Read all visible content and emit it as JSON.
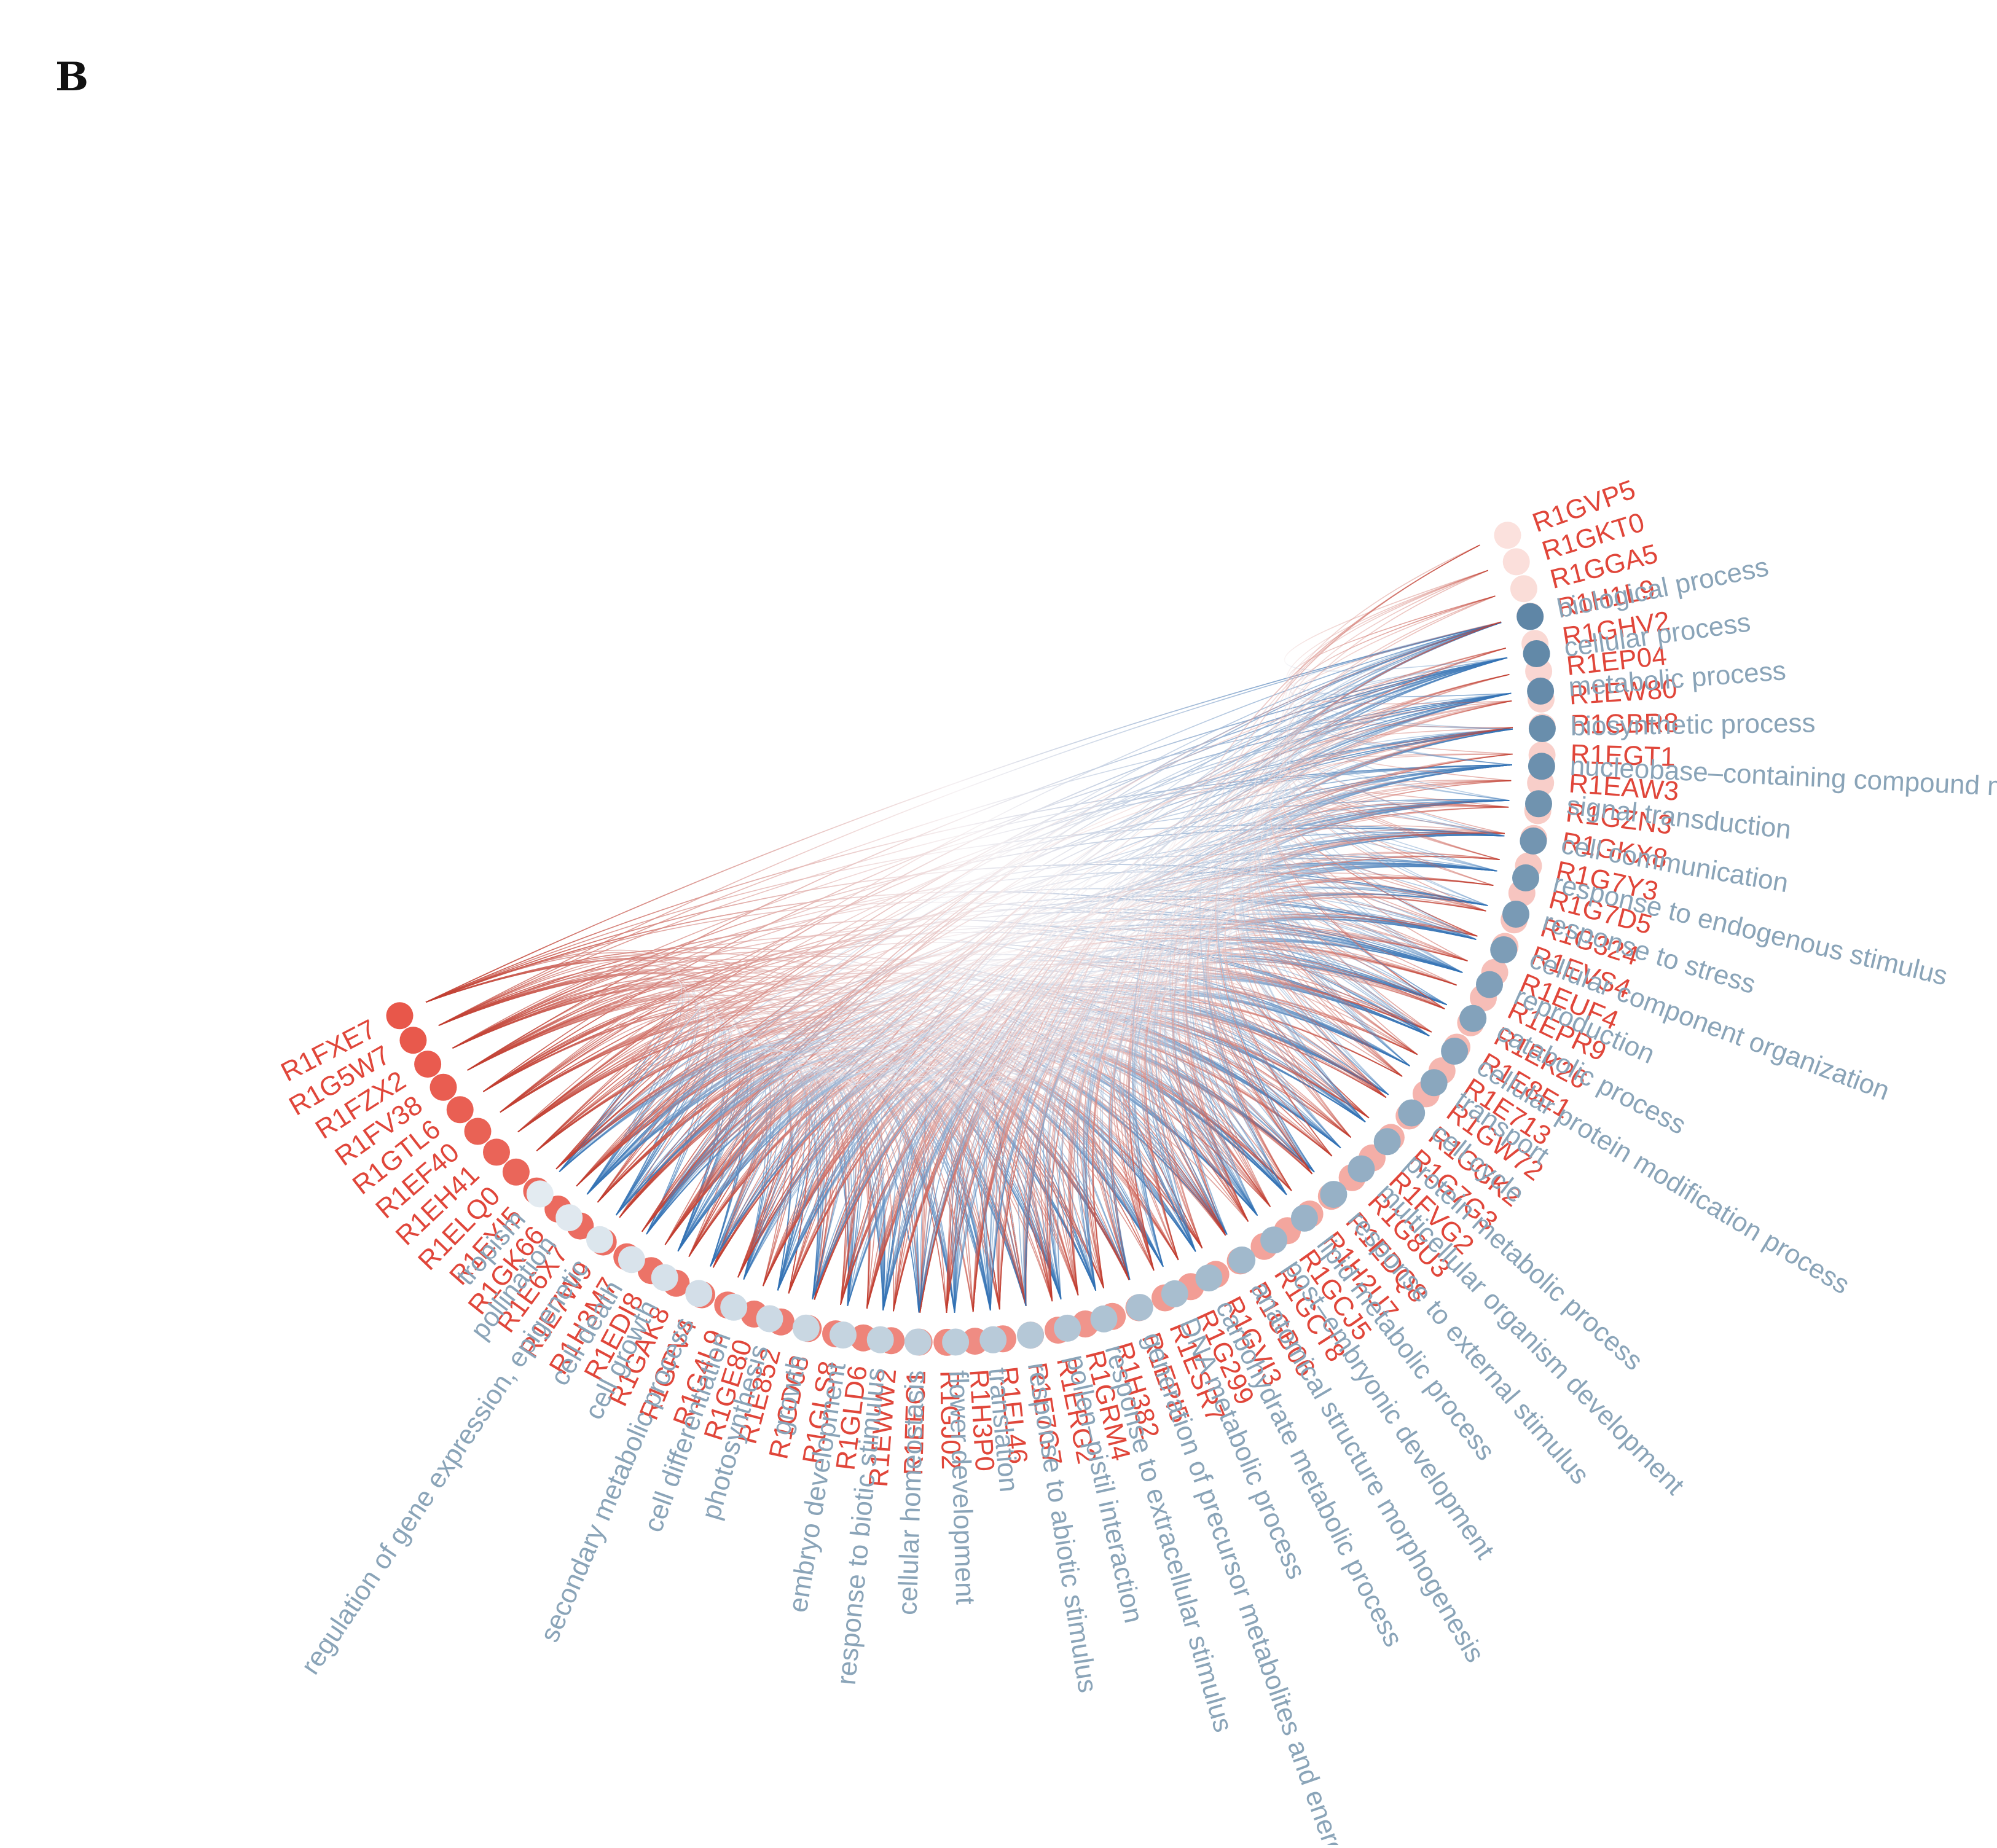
{
  "panel_label": "B",
  "colors": {
    "gene_strong": "#e8574a",
    "gene_light": "#fbe1dd",
    "term_strong": "#5f86a6",
    "term_light": "#e3ebf1",
    "gene_text": "#e0463a",
    "term_text": "#8aa4b8",
    "link_red": "#c0392b",
    "link_blue": "#2e6fb3"
  },
  "genes": [
    "R1FXE7",
    "R1G5W7",
    "R1FZX2",
    "R1FV38",
    "R1GTL6",
    "R1EF40",
    "R1EH41",
    "R1ELQ0",
    "R1EYI5",
    "R1GK66",
    "R1E6X7",
    "R1E7W9",
    "R1H3M7",
    "R1EDI8",
    "R1GAK8",
    "R1GPV4",
    "R1G4L9",
    "R1GE80",
    "R1E852",
    "R1GD68",
    "R1GLS8",
    "R1GLD6",
    "R1EWW2",
    "R1EEC1",
    "R1GJ02",
    "R1H3P0",
    "R1EL46",
    "R1E7G7",
    "R1ERG2",
    "R1GRM4",
    "R1H382",
    "R1EPI5",
    "R1ESR7",
    "R1G299",
    "R1GVI3",
    "R1GB06",
    "R1GCT8",
    "R1GCJ5",
    "R1H2U7",
    "R1EDQ8",
    "R1G8U3",
    "R1FVG2",
    "R1G7G3",
    "R1GGK2",
    "R1GW72",
    "R1E713",
    "R1E8E1",
    "R1EK26",
    "R1EPR9",
    "R1EUF4",
    "R1EVS4",
    "R1G324",
    "R1G7D5",
    "R1G7Y3",
    "R1GKX8",
    "R1GZN3",
    "R1EAW3",
    "R1EGT1",
    "R1GBR8",
    "R1EW80",
    "R1EP04",
    "R1GHV2",
    "R1H1L9",
    "R1GGA5",
    "R1GKT0",
    "R1GVP5"
  ],
  "terms": [
    "biological  process",
    "cellular process",
    "metabolic process",
    "biosynthetic process",
    "nucleobase–containing compound metabolic process",
    "signal transduction",
    "cell communication",
    "response to endogenous stimulus",
    "response to stress",
    "cellular component organization",
    "reproduction",
    "catabolic process",
    "cellular protein modification process",
    "transport",
    "cell cycle",
    "protein metabolic process",
    "multicellular organism development",
    "response to external stimulus",
    "lipid metabolic process",
    "post–embryonic development",
    "anatomical structure morphogenesis",
    "carbohydrate metabolic process",
    "DNA metabolic process",
    "generation of precursor metabolites and energy",
    "response to extracellular stimulus",
    "pollen–pistil interaction",
    "response to abiotic stimulus",
    "translation",
    "flower development",
    "cellular homeostasis",
    "response to biotic stimulus",
    "embryo development",
    "growth",
    "photosynthesis",
    "cell differentiation",
    "secondary metabolic process",
    "cell growth",
    "cell death",
    "regulation of gene expression, epigenetic",
    "pollination",
    "tropism"
  ]
}
